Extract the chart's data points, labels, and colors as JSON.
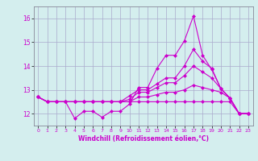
{
  "xlabel": "Windchill (Refroidissement éolien,°C)",
  "background_color": "#d4eeee",
  "line_color": "#cc00cc",
  "grid_color": "#aaaacc",
  "x_values": [
    0,
    1,
    2,
    3,
    4,
    5,
    6,
    7,
    8,
    9,
    10,
    11,
    12,
    13,
    14,
    15,
    16,
    17,
    18,
    19,
    20,
    21,
    22,
    23
  ],
  "lines": [
    [
      12.7,
      12.5,
      12.5,
      12.5,
      11.8,
      12.1,
      12.1,
      11.85,
      12.1,
      12.1,
      12.4,
      13.1,
      13.1,
      13.9,
      14.45,
      14.45,
      15.05,
      16.1,
      14.45,
      13.85,
      13.05,
      12.65,
      12.0,
      12.0
    ],
    [
      12.7,
      12.5,
      12.5,
      12.5,
      12.5,
      12.5,
      12.5,
      12.5,
      12.5,
      12.5,
      12.75,
      13.0,
      13.0,
      13.25,
      13.5,
      13.5,
      14.0,
      14.7,
      14.2,
      13.9,
      13.05,
      12.65,
      12.0,
      12.0
    ],
    [
      12.7,
      12.5,
      12.5,
      12.5,
      12.5,
      12.5,
      12.5,
      12.5,
      12.5,
      12.5,
      12.6,
      12.9,
      12.9,
      13.1,
      13.3,
      13.3,
      13.6,
      14.0,
      13.75,
      13.5,
      13.05,
      12.65,
      12.0,
      12.0
    ],
    [
      12.7,
      12.5,
      12.5,
      12.5,
      12.5,
      12.5,
      12.5,
      12.5,
      12.5,
      12.5,
      12.5,
      12.7,
      12.7,
      12.8,
      12.9,
      12.9,
      13.0,
      13.2,
      13.1,
      13.0,
      12.9,
      12.65,
      12.0,
      12.0
    ],
    [
      12.7,
      12.5,
      12.5,
      12.5,
      12.5,
      12.5,
      12.5,
      12.5,
      12.5,
      12.5,
      12.5,
      12.5,
      12.5,
      12.5,
      12.5,
      12.5,
      12.5,
      12.5,
      12.5,
      12.5,
      12.5,
      12.5,
      12.0,
      12.0
    ]
  ],
  "ylim": [
    11.5,
    16.5
  ],
  "yticks": [
    12,
    13,
    14,
    15,
    16
  ],
  "xticks": [
    0,
    1,
    2,
    3,
    4,
    5,
    6,
    7,
    8,
    9,
    10,
    11,
    12,
    13,
    14,
    15,
    16,
    17,
    18,
    19,
    20,
    21,
    22,
    23
  ],
  "xlim": [
    -0.5,
    23.5
  ]
}
